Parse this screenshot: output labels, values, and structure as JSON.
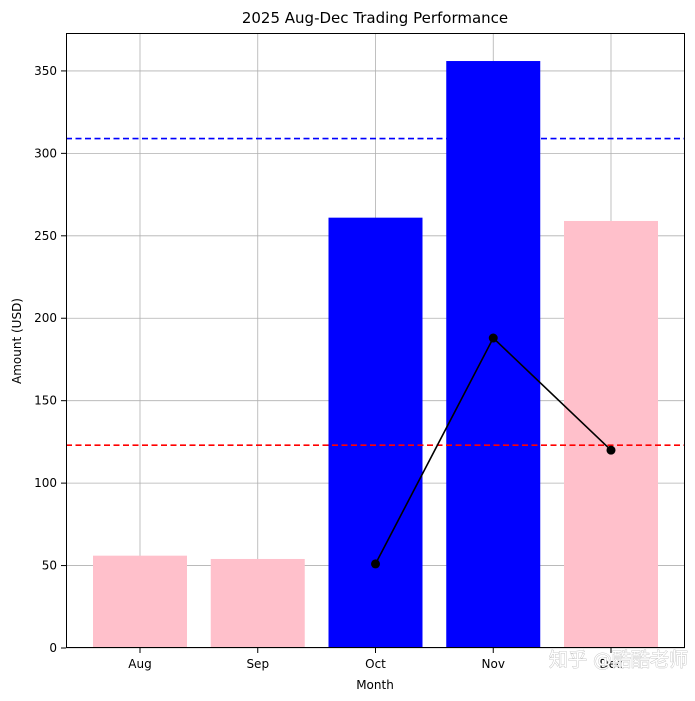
{
  "chart_data": {
    "type": "bar",
    "title": "2025 Aug-Dec Trading Performance",
    "xlabel": "Month",
    "ylabel": "Amount (USD)",
    "categories": [
      "Aug",
      "Sep",
      "Oct",
      "Nov",
      "Dec"
    ],
    "values": [
      56,
      54,
      261,
      356,
      259
    ],
    "bar_colors": [
      "#ffc0cb",
      "#ffc0cb",
      "#0000ff",
      "#0000ff",
      "#ffc0cb"
    ],
    "line": {
      "categories": [
        "Oct",
        "Nov",
        "Dec"
      ],
      "values": [
        51,
        188,
        120
      ],
      "color": "#000000"
    },
    "hlines": [
      {
        "value": 309,
        "color": "#0000ff",
        "style": "dashed"
      },
      {
        "value": 123,
        "color": "#ff0000",
        "style": "dashed"
      }
    ],
    "ylim": [
      0,
      373
    ],
    "yticks": [
      0,
      50,
      100,
      150,
      200,
      250,
      300,
      350
    ],
    "grid": true
  },
  "watermark": "知乎 @酷酷老师"
}
